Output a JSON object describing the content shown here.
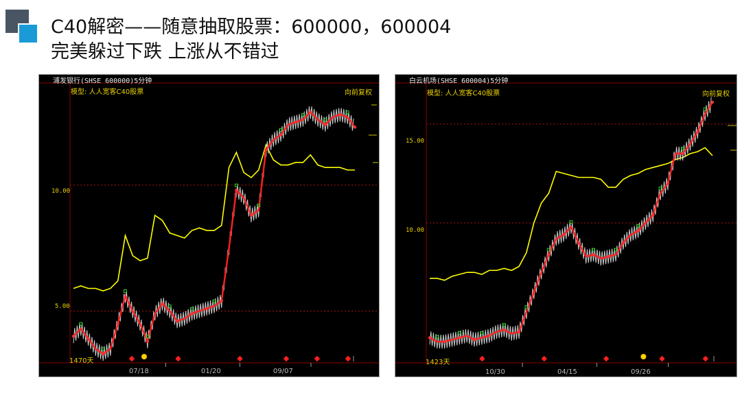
{
  "slide": {
    "title_line1": "C40解密——随意抽取股票：600000，600004",
    "title_line2": "完美躲过下跌 上涨从不错过"
  },
  "charts": [
    {
      "header": "浦发银行(SHSE 600000)5分钟",
      "model_label": "模型: 人人宽客C40股票",
      "adjust_label": "向前复权",
      "y_labels": [
        "10.00",
        "5.00"
      ],
      "days_label": "1470天",
      "x_labels": [
        "07/18",
        "01/20",
        "09/07"
      ]
    },
    {
      "header": "白云机场(SHSE 600004)5分钟",
      "model_label": "模型: 人人宽客C40股票",
      "adjust_label": "向前复权",
      "y_labels": [
        "15.00",
        "10.00"
      ],
      "days_label": "1423天",
      "x_labels": [
        "10/30",
        "04/15",
        "09/26"
      ]
    }
  ],
  "chart_data": [
    {
      "type": "line",
      "title": "浦发银行(SHSE 600000)5分钟",
      "ylim": [
        3,
        14
      ],
      "x_ticks": [
        "07/18",
        "01/20",
        "09/07"
      ],
      "series": [
        {
          "values": [
            4.0,
            4.3,
            3.9,
            3.5,
            3.3,
            3.5,
            4.5,
            5.6,
            5.0,
            4.5,
            3.8,
            4.9,
            5.3,
            5.0,
            4.6,
            4.7,
            4.9,
            5.0,
            5.1,
            5.2,
            5.4,
            7.5,
            9.8,
            9.5,
            8.8,
            9.0,
            11.4,
            11.8,
            12.0,
            12.4,
            12.5,
            12.6,
            12.9,
            12.6,
            12.4,
            12.7,
            12.8,
            12.7,
            12.3
          ]
        },
        {
          "values": [
            5.9,
            6.0,
            5.9,
            5.9,
            5.8,
            5.9,
            6.2,
            8.0,
            7.2,
            7.0,
            7.1,
            8.8,
            8.6,
            8.1,
            8.0,
            7.9,
            8.2,
            8.3,
            8.2,
            8.2,
            8.4,
            10.7,
            11.3,
            10.5,
            10.3,
            10.6,
            11.6,
            11.0,
            10.8,
            10.8,
            10.9,
            10.9,
            11.2,
            10.8,
            10.7,
            10.7,
            10.7,
            10.6,
            10.6
          ]
        }
      ]
    },
    {
      "type": "line",
      "title": "白云机场(SHSE 600004)5分钟",
      "ylim": [
        3.0,
        17.0
      ],
      "x_ticks": [
        "10/30",
        "04/15",
        "09/26"
      ],
      "series": [
        {
          "values": [
            4.2,
            4.0,
            4.0,
            4.1,
            4.2,
            4.3,
            4.1,
            4.2,
            4.3,
            4.5,
            4.6,
            4.4,
            4.5,
            5.5,
            6.5,
            7.5,
            8.4,
            9.2,
            9.4,
            9.8,
            9.0,
            8.3,
            8.4,
            8.2,
            8.3,
            8.4,
            9.0,
            9.4,
            9.6,
            10.0,
            10.4,
            11.5,
            12.0,
            13.5,
            13.5,
            14.0,
            14.6,
            15.5,
            16.1
          ]
        },
        {
          "values": [
            7.2,
            7.2,
            7.1,
            7.3,
            7.4,
            7.5,
            7.5,
            7.4,
            7.6,
            7.6,
            7.7,
            7.6,
            7.8,
            8.5,
            10.0,
            11.0,
            11.5,
            12.6,
            12.5,
            12.4,
            12.3,
            12.3,
            12.3,
            12.2,
            11.8,
            11.8,
            12.2,
            12.4,
            12.5,
            12.7,
            12.8,
            12.9,
            13.0,
            13.2,
            13.3,
            13.5,
            13.6,
            13.8,
            13.4
          ]
        }
      ]
    }
  ]
}
